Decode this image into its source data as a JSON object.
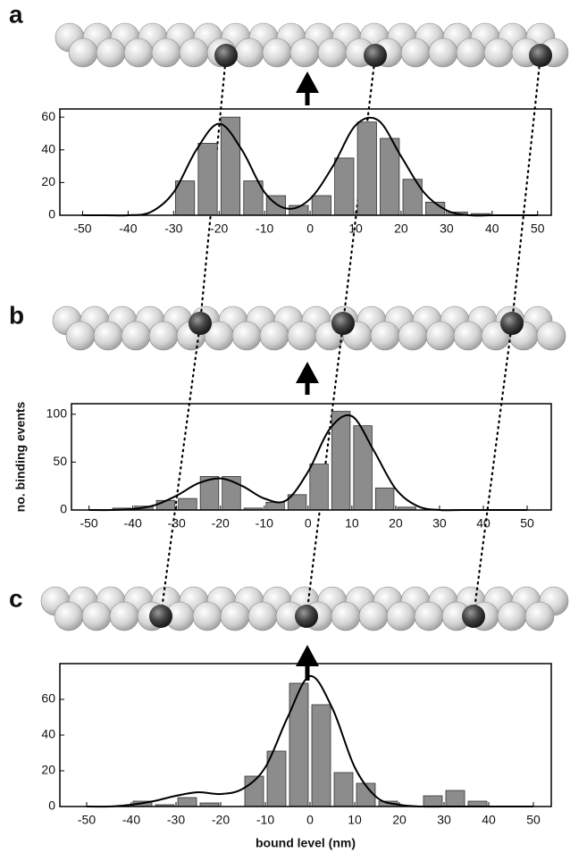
{
  "chart_data": [
    {
      "type": "bar",
      "panel": "a",
      "xlim": [
        -55,
        53
      ],
      "xticks": [
        -50,
        -40,
        -30,
        -20,
        -10,
        0,
        10,
        20,
        30,
        40,
        50
      ],
      "ylim": [
        0,
        65
      ],
      "yticks": [
        0,
        20,
        40,
        60
      ],
      "series": [
        {
          "type": "bar",
          "color": "#8c8c8c",
          "x": [
            -27.5,
            -22.5,
            -17.5,
            -12.5,
            -7.5,
            -2.5,
            2.5,
            7.5,
            12.5,
            17.5,
            22.5,
            27.5,
            32.5,
            37.5
          ],
          "values": [
            21,
            44,
            60,
            21,
            12,
            6,
            12,
            35,
            57,
            47,
            22,
            8,
            2,
            1
          ]
        },
        {
          "type": "line",
          "color": "#000000",
          "x": [
            -50,
            -45,
            -40,
            -35,
            -30,
            -25,
            -20,
            -15,
            -10,
            -5,
            0,
            5,
            10,
            15,
            20,
            25,
            30,
            35,
            40,
            45,
            50
          ],
          "values": [
            0,
            0,
            0,
            2,
            14,
            40,
            56,
            40,
            14,
            4,
            10,
            30,
            55,
            58,
            36,
            14,
            3,
            0,
            0,
            0,
            0
          ]
        }
      ]
    },
    {
      "type": "bar",
      "panel": "b",
      "y_label": "no. binding events",
      "xlim": [
        -54,
        55.5
      ],
      "xticks": [
        -50,
        -40,
        -30,
        -20,
        -10,
        0,
        10,
        20,
        30,
        40,
        50
      ],
      "ylim": [
        0,
        111
      ],
      "yticks": [
        0,
        50,
        100
      ],
      "series": [
        {
          "type": "bar",
          "color": "#8c8c8c",
          "x": [
            -42.5,
            -37.5,
            -32.5,
            -27.5,
            -22.5,
            -17.5,
            -12.5,
            -7.5,
            -2.5,
            2.5,
            7.5,
            12.5,
            17.5,
            22.5
          ],
          "values": [
            2,
            4,
            10,
            12,
            35,
            35,
            2,
            8,
            16,
            48,
            103,
            88,
            23,
            3
          ]
        },
        {
          "type": "line",
          "color": "#000000",
          "x": [
            -50,
            -45,
            -40,
            -35,
            -30,
            -25,
            -20,
            -15,
            -10,
            -5,
            0,
            5,
            10,
            15,
            20,
            25,
            30,
            35,
            40,
            45,
            50
          ],
          "values": [
            0,
            0,
            1,
            5,
            15,
            28,
            33,
            25,
            12,
            10,
            40,
            85,
            98,
            62,
            22,
            4,
            0,
            0,
            0,
            0,
            0
          ]
        }
      ]
    },
    {
      "type": "bar",
      "panel": "c",
      "x_label": "bound level (nm)",
      "xlim": [
        -56,
        54
      ],
      "xticks": [
        -50,
        -40,
        -30,
        -20,
        -10,
        0,
        10,
        20,
        30,
        40,
        50
      ],
      "ylim": [
        0,
        80
      ],
      "yticks": [
        0,
        20,
        40,
        60
      ],
      "series": [
        {
          "type": "bar",
          "color": "#8c8c8c",
          "x": [
            -37.5,
            -32.5,
            -27.5,
            -22.5,
            -12.5,
            -7.5,
            -2.5,
            2.5,
            7.5,
            12.5,
            17.5,
            27.5,
            32.5,
            37.5
          ],
          "values": [
            3,
            1,
            5,
            2,
            17,
            31,
            69,
            57,
            19,
            13,
            3,
            6,
            9,
            3
          ]
        },
        {
          "type": "line",
          "color": "#000000",
          "x": [
            -50,
            -45,
            -40,
            -35,
            -30,
            -25,
            -20,
            -15,
            -10,
            -5,
            0,
            5,
            10,
            15,
            20,
            25,
            30,
            35,
            40,
            45,
            50
          ],
          "values": [
            0,
            0,
            1,
            3,
            6,
            8,
            7,
            10,
            22,
            50,
            73,
            55,
            22,
            5,
            1,
            0,
            0,
            0,
            0,
            0,
            0
          ]
        }
      ]
    }
  ]
}
